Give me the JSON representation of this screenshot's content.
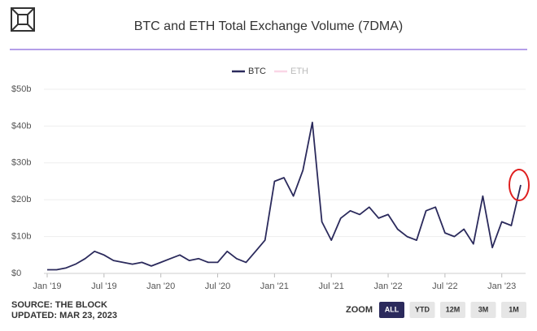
{
  "chart_data": {
    "type": "line",
    "title": "BTC and ETH Total Exchange Volume (7DMA)",
    "x": [
      "2019-01",
      "2019-02",
      "2019-03",
      "2019-04",
      "2019-05",
      "2019-06",
      "2019-07",
      "2019-08",
      "2019-09",
      "2019-10",
      "2019-11",
      "2019-12",
      "2020-01",
      "2020-02",
      "2020-03",
      "2020-04",
      "2020-05",
      "2020-06",
      "2020-07",
      "2020-08",
      "2020-09",
      "2020-10",
      "2020-11",
      "2020-12",
      "2021-01",
      "2021-02",
      "2021-03",
      "2021-04",
      "2021-05",
      "2021-06",
      "2021-07",
      "2021-08",
      "2021-09",
      "2021-10",
      "2021-11",
      "2021-12",
      "2022-01",
      "2022-02",
      "2022-03",
      "2022-04",
      "2022-05",
      "2022-06",
      "2022-07",
      "2022-08",
      "2022-09",
      "2022-10",
      "2022-11",
      "2022-12",
      "2023-01",
      "2023-02",
      "2023-03"
    ],
    "series": [
      {
        "name": "BTC",
        "color": "#2b2a5c",
        "visible": true,
        "values": [
          1,
          1,
          1.5,
          2.5,
          4,
          6,
          5,
          3.5,
          3,
          2.5,
          3,
          2,
          3,
          4,
          5,
          3.5,
          4,
          3,
          3,
          6,
          4,
          3,
          6,
          9,
          25,
          26,
          21,
          28,
          41,
          14,
          9,
          15,
          17,
          16,
          18,
          15,
          16,
          12,
          10,
          9,
          17,
          18,
          11,
          10,
          12,
          8,
          21,
          7,
          14,
          13,
          24
        ]
      },
      {
        "name": "ETH",
        "color": "#f4a6c8",
        "visible": false,
        "values": [
          null,
          null,
          null,
          null,
          null,
          null,
          null,
          null,
          null,
          null,
          null,
          null,
          null,
          null,
          null,
          null,
          null,
          null,
          null,
          null,
          null,
          null,
          null,
          null,
          null,
          null,
          null,
          null,
          null,
          null,
          null,
          null,
          null,
          null,
          null,
          null,
          null,
          null,
          null,
          null,
          null,
          null,
          null,
          null,
          null,
          null,
          null,
          null,
          null,
          null,
          null
        ]
      }
    ],
    "xlim": [
      "2019-01",
      "2023-03"
    ],
    "xticks": [
      {
        "value": "2019-01",
        "label": "Jan '19"
      },
      {
        "value": "2019-07",
        "label": "Jul '19"
      },
      {
        "value": "2020-01",
        "label": "Jan '20"
      },
      {
        "value": "2020-07",
        "label": "Jul '20"
      },
      {
        "value": "2021-01",
        "label": "Jan '21"
      },
      {
        "value": "2021-07",
        "label": "Jul '21"
      },
      {
        "value": "2022-01",
        "label": "Jan '22"
      },
      {
        "value": "2022-07",
        "label": "Jul '22"
      },
      {
        "value": "2023-01",
        "label": "Jan '23"
      }
    ],
    "ylim": [
      0,
      50
    ],
    "yticks": [
      {
        "value": 0,
        "label": "$0"
      },
      {
        "value": 10,
        "label": "$10b"
      },
      {
        "value": 20,
        "label": "$20b"
      },
      {
        "value": 30,
        "label": "$30b"
      },
      {
        "value": 40,
        "label": "$40b"
      },
      {
        "value": 50,
        "label": "$50b"
      }
    ],
    "source": "SOURCE: THE BLOCK",
    "updated": "UPDATED: MAR 23, 2023",
    "zoom_label": "ZOOM",
    "zoom_buttons": [
      "ALL",
      "YTD",
      "12M",
      "3M",
      "1M"
    ],
    "zoom_active": "ALL"
  }
}
